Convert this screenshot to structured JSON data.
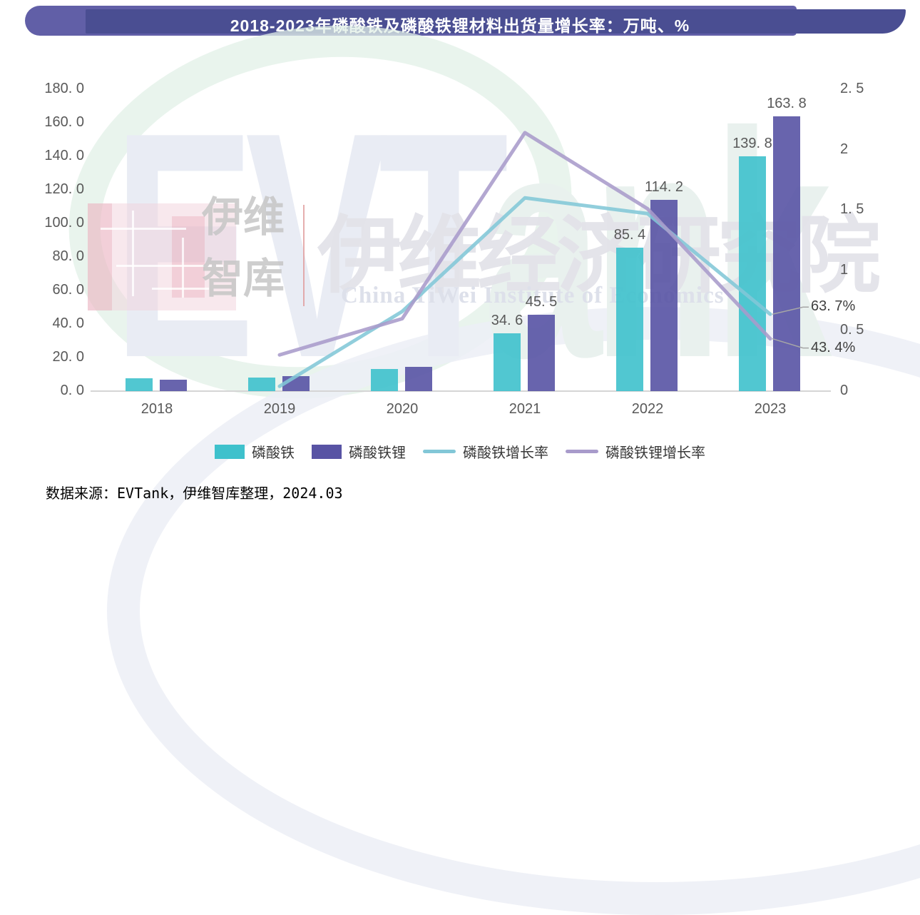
{
  "banner": {
    "title": "2018-2023年磷酸铁及磷酸铁锂材料出货量增长率：万吨、%",
    "bg_dark": "#4A4E92",
    "bg_light": "#615FA7",
    "text_color": "#FFFFFF"
  },
  "watermark": {
    "evtank_prefix": "EVT",
    "evtank_suffix": "ank",
    "cn_small": "伊维\n智库",
    "institute_cn": "伊维经济研究院",
    "institute_en": "China YiWei Institute of Economics"
  },
  "chart_data": {
    "type": "bar",
    "subtype": "bar-line-combo",
    "title": "2018-2023年磷酸铁及磷酸铁锂材料出货量增长率：万吨、%",
    "categories": [
      "2018",
      "2019",
      "2020",
      "2021",
      "2022",
      "2023"
    ],
    "series": [
      {
        "name": "磷酸铁",
        "type": "bar",
        "axis": "left",
        "color": "#3EC1CC",
        "values": [
          7.7,
          8.0,
          13.3,
          34.6,
          85.4,
          139.8
        ],
        "labels": [
          null,
          null,
          null,
          "34. 6",
          "85. 4",
          "139. 8"
        ]
      },
      {
        "name": "磷酸铁锂",
        "type": "bar",
        "axis": "left",
        "color": "#5853A4",
        "values": [
          7.0,
          9.1,
          14.5,
          45.5,
          114.2,
          163.8
        ],
        "labels": [
          null,
          null,
          null,
          "45. 5",
          "114. 2",
          "163. 8"
        ]
      },
      {
        "name": "磷酸铁增长率",
        "type": "line",
        "axis": "right",
        "color": "#82C7D7",
        "values": [
          null,
          0.04,
          0.66,
          1.6,
          1.47,
          0.637
        ]
      },
      {
        "name": "磷酸铁锂增长率",
        "type": "line",
        "axis": "right",
        "color": "#A89BCB",
        "values": [
          null,
          0.3,
          0.6,
          2.14,
          1.51,
          0.434
        ]
      }
    ],
    "left_axis": {
      "tick_labels": [
        "0. 0",
        "20. 0",
        "40. 0",
        "60. 0",
        "80. 0",
        "100. 0",
        "120. 0",
        "140. 0",
        "160. 0",
        "180. 0"
      ],
      "tick_values": [
        0,
        20,
        40,
        60,
        80,
        100,
        120,
        140,
        160,
        180
      ],
      "min": 0,
      "max": 180,
      "unit": "万吨"
    },
    "right_axis": {
      "tick_labels": [
        "0",
        "0. 5",
        "1",
        "1. 5",
        "2",
        "2. 5"
      ],
      "tick_values": [
        0,
        0.5,
        1,
        1.5,
        2,
        2.5
      ],
      "min": 0,
      "max": 2.5,
      "unit": "%"
    },
    "grid": false,
    "legend_position": "bottom",
    "annotations": [
      {
        "text": "63. 7%",
        "series": "磷酸铁增长率",
        "value_pct": 63.7
      },
      {
        "text": "43. 4%",
        "series": "磷酸铁锂增长率",
        "value_pct": 43.4
      }
    ]
  },
  "legend": {
    "items": [
      {
        "label": "磷酸铁",
        "swatch": "bar",
        "color": "#3EC1CC"
      },
      {
        "label": "磷酸铁锂",
        "swatch": "bar",
        "color": "#5853A4"
      },
      {
        "label": "磷酸铁增长率",
        "swatch": "line",
        "color": "#82C7D7"
      },
      {
        "label": "磷酸铁锂增长率",
        "swatch": "line",
        "color": "#A89BCB"
      }
    ]
  },
  "source_note": "数据来源：EVTank，伊维智库整理，2024.03"
}
